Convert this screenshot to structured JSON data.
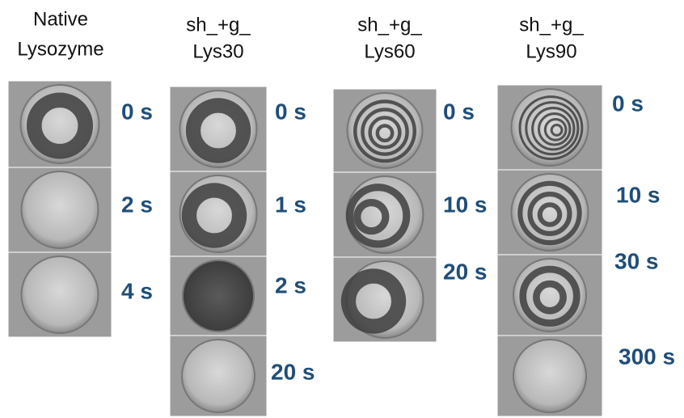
{
  "columns": [
    {
      "header": [
        "Native",
        "Lysozyme"
      ],
      "times": [
        "0 s",
        "2 s",
        "4 s"
      ]
    },
    {
      "header": [
        "sh_+g_",
        "Lys30"
      ],
      "times": [
        "0 s",
        "1 s",
        "2 s",
        "20 s"
      ]
    },
    {
      "header": [
        "sh_+g_",
        "Lys60"
      ],
      "times": [
        "0 s",
        "10 s",
        "20 s"
      ]
    },
    {
      "header": [
        "sh_+g_",
        "Lys90"
      ],
      "times": [
        "0 s",
        "10 s",
        "30 s",
        "300 s"
      ]
    }
  ]
}
